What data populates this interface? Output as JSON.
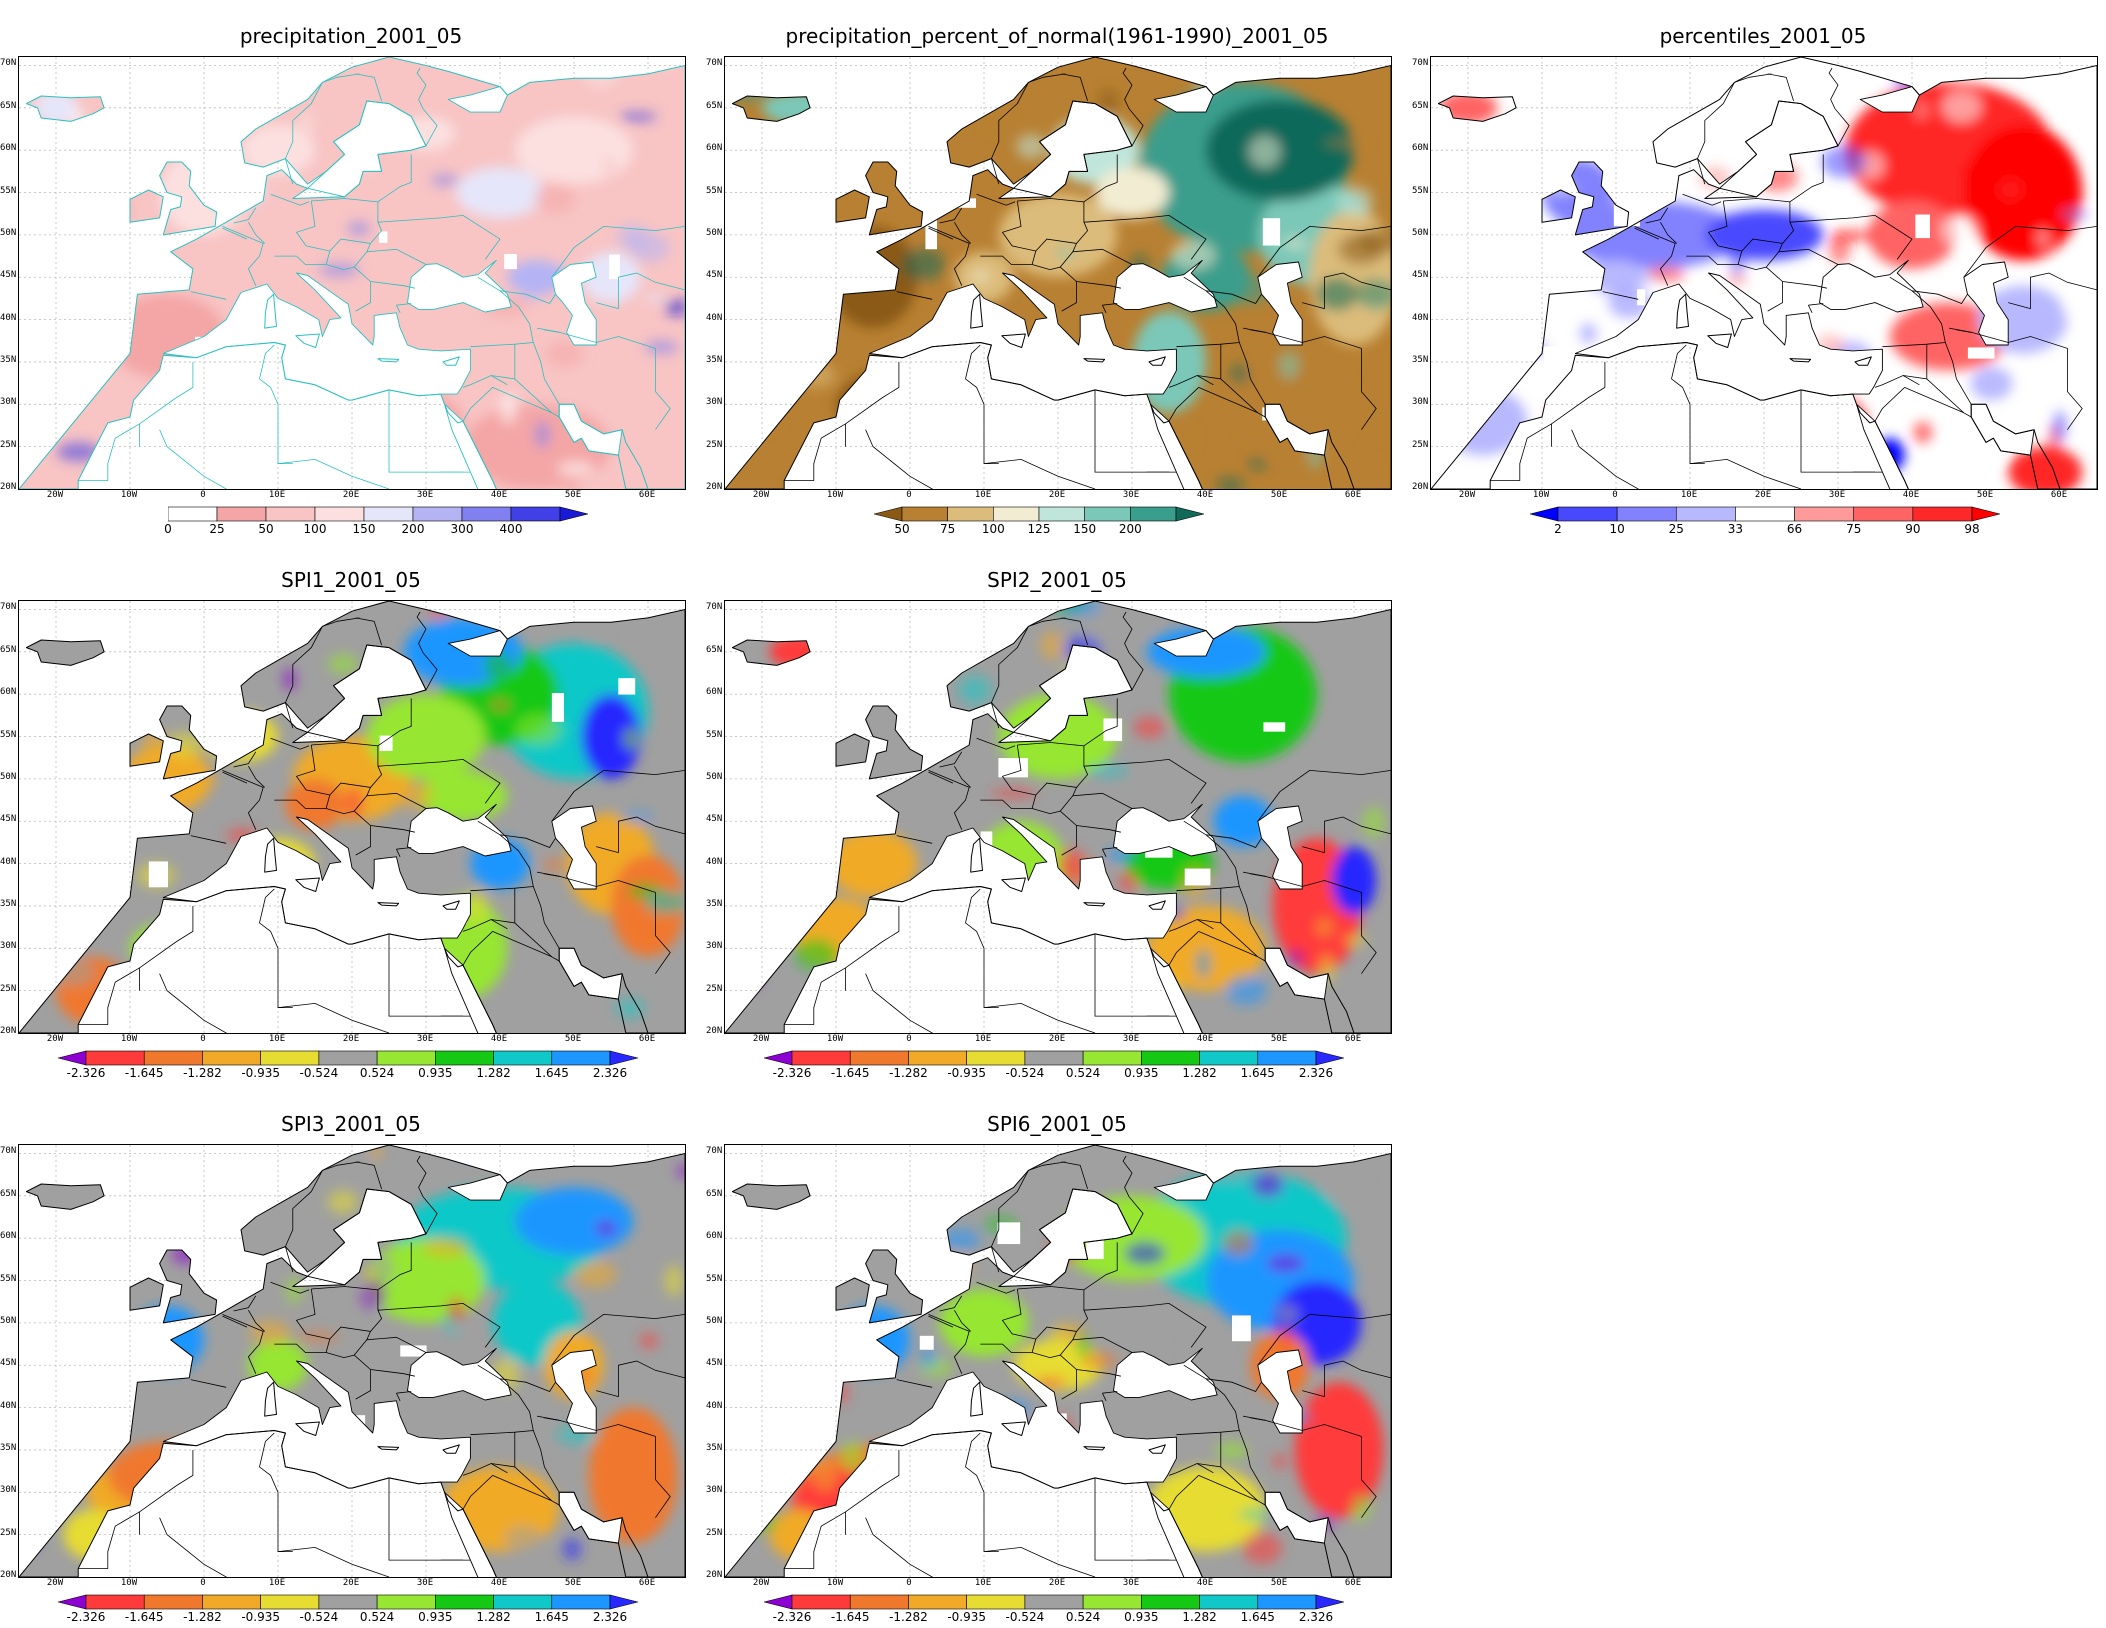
{
  "panels": [
    {
      "id": "precip",
      "title": "precipitation_2001_05",
      "map_style": "precip",
      "colorbar": {
        "labels": [
          "0",
          "25",
          "50",
          "100",
          "150",
          "200",
          "300",
          "400"
        ],
        "colors": [
          "#ffffff",
          "#f4a6a6",
          "#f8c4c4",
          "#fce0e0",
          "#e6e6fa",
          "#b4b4f5",
          "#8080f0",
          "#4040e6",
          "#1a1ad6"
        ],
        "left_arrow": false,
        "right_arrow": true,
        "dashed_left": true
      }
    },
    {
      "id": "pct_normal",
      "title": "precipitation_percent_of_normal(1961-1990)_2001_05",
      "map_style": "pct",
      "colorbar": {
        "labels": [
          "50",
          "75",
          "100",
          "125",
          "150",
          "200"
        ],
        "colors": [
          "#8a5a14",
          "#b88032",
          "#dcbc7a",
          "#f2ecd2",
          "#c0e6dc",
          "#7cc8b8",
          "#3a9e8c",
          "#11695a"
        ],
        "left_arrow": true,
        "right_arrow": true
      }
    },
    {
      "id": "percentiles",
      "title": "percentiles_2001_05",
      "map_style": "perc",
      "colorbar": {
        "labels": [
          "2",
          "10",
          "25",
          "33",
          "66",
          "75",
          "90",
          "98"
        ],
        "colors": [
          "#0000ff",
          "#4848ff",
          "#8282ff",
          "#b8b8ff",
          "#ffffff",
          "#ff9a9a",
          "#ff6464",
          "#ff2828",
          "#ff0000"
        ],
        "left_arrow": true,
        "right_arrow": true
      }
    },
    {
      "id": "spi1",
      "title": "SPI1_2001_05",
      "map_style": "spi1",
      "colorbar": {
        "labels": [
          "-2.326",
          "-1.645",
          "-1.282",
          "-0.935",
          "-0.524",
          "0.524",
          "0.935",
          "1.282",
          "1.645",
          "2.326"
        ],
        "colors": [
          "#8c00d2",
          "#ff3a3a",
          "#f0782d",
          "#f0aa28",
          "#e6dc32",
          "#a0a0a0",
          "#96e632",
          "#14c814",
          "#10c8c8",
          "#1e96ff",
          "#2828ff"
        ],
        "left_arrow": true,
        "right_arrow": true
      }
    },
    {
      "id": "spi2",
      "title": "SPI2_2001_05",
      "map_style": "spi2",
      "colorbar": {
        "labels": [
          "-2.326",
          "-1.645",
          "-1.282",
          "-0.935",
          "-0.524",
          "0.524",
          "0.935",
          "1.282",
          "1.645",
          "2.326"
        ],
        "colors": [
          "#8c00d2",
          "#ff3a3a",
          "#f0782d",
          "#f0aa28",
          "#e6dc32",
          "#a0a0a0",
          "#96e632",
          "#14c814",
          "#10c8c8",
          "#1e96ff",
          "#2828ff"
        ],
        "left_arrow": true,
        "right_arrow": true
      }
    },
    {
      "id": "spi3",
      "title": "SPI3_2001_05",
      "map_style": "spi3",
      "colorbar": {
        "labels": [
          "-2.326",
          "-1.645",
          "-1.282",
          "-0.935",
          "-0.524",
          "0.524",
          "0.935",
          "1.282",
          "1.645",
          "2.326"
        ],
        "colors": [
          "#8c00d2",
          "#ff3a3a",
          "#f0782d",
          "#f0aa28",
          "#e6dc32",
          "#a0a0a0",
          "#96e632",
          "#14c814",
          "#10c8c8",
          "#1e96ff",
          "#2828ff"
        ],
        "left_arrow": true,
        "right_arrow": true
      }
    },
    {
      "id": "spi6",
      "title": "SPI6_2001_05",
      "map_style": "spi6",
      "colorbar": {
        "labels": [
          "-2.326",
          "-1.645",
          "-1.282",
          "-0.935",
          "-0.524",
          "0.524",
          "0.935",
          "1.282",
          "1.645",
          "2.326"
        ],
        "colors": [
          "#8c00d2",
          "#ff3a3a",
          "#f0782d",
          "#f0aa28",
          "#e6dc32",
          "#a0a0a0",
          "#96e632",
          "#14c814",
          "#10c8c8",
          "#1e96ff",
          "#2828ff"
        ],
        "left_arrow": true,
        "right_arrow": true
      }
    }
  ],
  "lat_labels": [
    "70N",
    "65N",
    "60N",
    "55N",
    "50N",
    "45N",
    "40N",
    "35N",
    "30N",
    "25N",
    "20N"
  ],
  "lon_labels": [
    "20W",
    "10W",
    "0",
    "10E",
    "20E",
    "30E",
    "40E",
    "50E",
    "60E"
  ]
}
